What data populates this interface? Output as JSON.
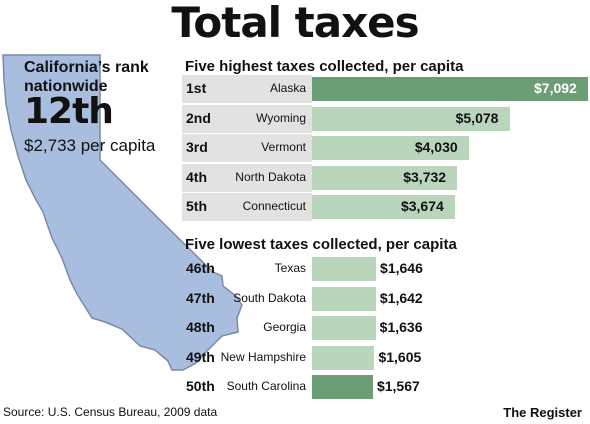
{
  "title": "Total taxes",
  "california": {
    "rank_label": "California’s rank nationwide",
    "rank": "12th",
    "per_capita": "$2,733 per capita"
  },
  "source": "Source: U.S. Census Bureau, 2009 data",
  "credit": "The Register",
  "colors": {
    "light_bar": "#b9d6bd",
    "dark_bar": "#6b9e76",
    "row_band": "#e2e2e2",
    "map_fill": "#a9bedf",
    "map_stroke": "#7a8aa6"
  },
  "chart_data": [
    {
      "type": "bar",
      "title": "Five highest taxes collected, per capita",
      "ranks": [
        "1st",
        "2nd",
        "3rd",
        "4th",
        "5th"
      ],
      "categories": [
        "Alaska",
        "Wyoming",
        "Vermont",
        "North Dakota",
        "Connecticut"
      ],
      "values": [
        7092,
        5078,
        4030,
        3732,
        3674
      ],
      "value_labels": [
        "$7,092",
        "$5,078",
        "$4,030",
        "$3,732",
        "$3,674"
      ],
      "highlight": "Alaska"
    },
    {
      "type": "bar",
      "title": "Five lowest taxes collected, per capita",
      "ranks": [
        "46th",
        "47th",
        "48th",
        "49th",
        "50th"
      ],
      "categories": [
        "Texas",
        "South Dakota",
        "Georgia",
        "New Hampshire",
        "South Carolina"
      ],
      "values": [
        1646,
        1642,
        1636,
        1605,
        1567
      ],
      "value_labels": [
        "$1,646",
        "$1,642",
        "$1,636",
        "$1,605",
        "$1,567"
      ],
      "highlight": "South Carolina"
    }
  ]
}
